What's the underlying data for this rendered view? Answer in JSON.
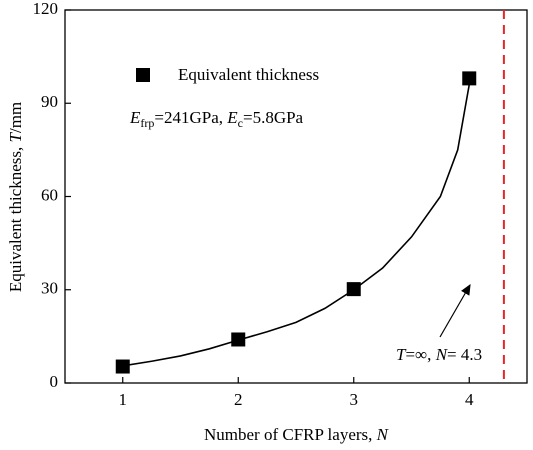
{
  "chart_data": {
    "type": "scatter",
    "x_label": {
      "text": "Number of CFRP layers, ",
      "var": "N"
    },
    "y_label": {
      "text": "Equivalent thickness, ",
      "var": "T",
      "unit": "/mm"
    },
    "x": [
      1,
      2,
      3,
      4
    ],
    "series": [
      {
        "name": "Equivalent thickness",
        "color": "#000000",
        "values": [
          5.3,
          14,
          30.2,
          98
        ]
      }
    ],
    "fit_curve": {
      "color": "#000000",
      "x": [
        1,
        1.25,
        1.5,
        1.75,
        2,
        2.25,
        2.5,
        2.75,
        3,
        3.25,
        3.5,
        3.75,
        3.9,
        4
      ],
      "values": [
        5.5,
        7,
        8.7,
        11,
        13.8,
        16.5,
        19.5,
        24,
        30,
        37,
        47,
        60,
        75,
        96
      ]
    },
    "asymptote": {
      "x": 4.3,
      "color": "#e8262a",
      "label": {
        "t": "T",
        "eq": "=∞, ",
        "n": "N",
        "val": "= 4.3"
      }
    },
    "annotation": {
      "e1": "E",
      "sub1": "frp",
      "mid": "=241GPa,  ",
      "e2": "E",
      "sub2": "c",
      "end": "=5.8GPa"
    },
    "xlim": [
      0.5,
      4.5
    ],
    "ylim": [
      0,
      120
    ],
    "xticks": [
      1,
      2,
      3,
      4
    ],
    "yticks": [
      0,
      30,
      60,
      90,
      120
    ]
  }
}
